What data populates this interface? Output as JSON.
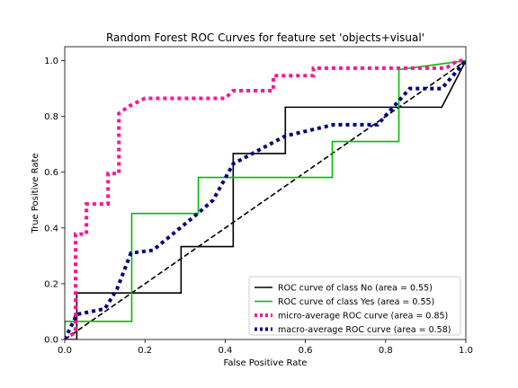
{
  "chart_data": {
    "type": "line",
    "title": "Random Forest ROC Curves for feature set 'objects+visual'",
    "xlabel": "False Positive Rate",
    "ylabel": "True Positive Rate",
    "xlim": [
      0.0,
      1.0
    ],
    "ylim": [
      0.0,
      1.05
    ],
    "xticks": [
      "0.0",
      "0.2",
      "0.4",
      "0.6",
      "0.8",
      "1.0"
    ],
    "yticks": [
      "0.0",
      "0.2",
      "0.4",
      "0.6",
      "0.8",
      "1.0"
    ],
    "grid": false,
    "legend_position": "lower-right",
    "series": [
      {
        "name": "ROC curve of class No (area = 0.55)",
        "color": "#000000",
        "style": "solid",
        "x": [
          0.0,
          0.0,
          0.03,
          0.03,
          0.29,
          0.29,
          0.42,
          0.42,
          0.55,
          0.55,
          0.94,
          1.0
        ],
        "y": [
          0.0,
          0.0,
          0.0,
          0.167,
          0.167,
          0.333,
          0.333,
          0.667,
          0.667,
          0.833,
          0.833,
          1.0
        ]
      },
      {
        "name": "ROC curve of class Yes (area = 0.55)",
        "color": "#00bb00",
        "style": "solid",
        "x": [
          0.0,
          0.0,
          0.167,
          0.167,
          0.333,
          0.333,
          0.667,
          0.667,
          0.833,
          0.833,
          1.0
        ],
        "y": [
          0.0,
          0.065,
          0.065,
          0.452,
          0.452,
          0.581,
          0.581,
          0.71,
          0.71,
          0.968,
          1.0
        ]
      },
      {
        "name": "micro-average ROC curve (area = 0.85)",
        "color": "#ff1493",
        "style": "dotted",
        "x": [
          0.0,
          0.027,
          0.027,
          0.054,
          0.054,
          0.108,
          0.108,
          0.135,
          0.135,
          0.162,
          0.2,
          0.4,
          0.42,
          0.52,
          0.52,
          0.62,
          0.62,
          0.95,
          0.98,
          1.0
        ],
        "y": [
          0.0,
          0.027,
          0.378,
          0.378,
          0.486,
          0.486,
          0.595,
          0.595,
          0.811,
          0.838,
          0.865,
          0.865,
          0.892,
          0.892,
          0.946,
          0.946,
          0.973,
          0.973,
          1.0,
          1.0
        ]
      },
      {
        "name": "macro-average ROC curve (area = 0.58)",
        "color": "#000080",
        "style": "dotted",
        "x": [
          0.0,
          0.03,
          0.1,
          0.13,
          0.165,
          0.22,
          0.33,
          0.37,
          0.42,
          0.55,
          0.67,
          0.78,
          0.86,
          0.94,
          1.0
        ],
        "y": [
          0.0,
          0.09,
          0.11,
          0.18,
          0.31,
          0.32,
          0.45,
          0.5,
          0.63,
          0.73,
          0.77,
          0.77,
          0.9,
          0.9,
          1.0
        ]
      }
    ],
    "reference_line": {
      "x": [
        0.0,
        1.0
      ],
      "y": [
        0.0,
        1.0
      ],
      "color": "#000000",
      "style": "dashed"
    }
  }
}
